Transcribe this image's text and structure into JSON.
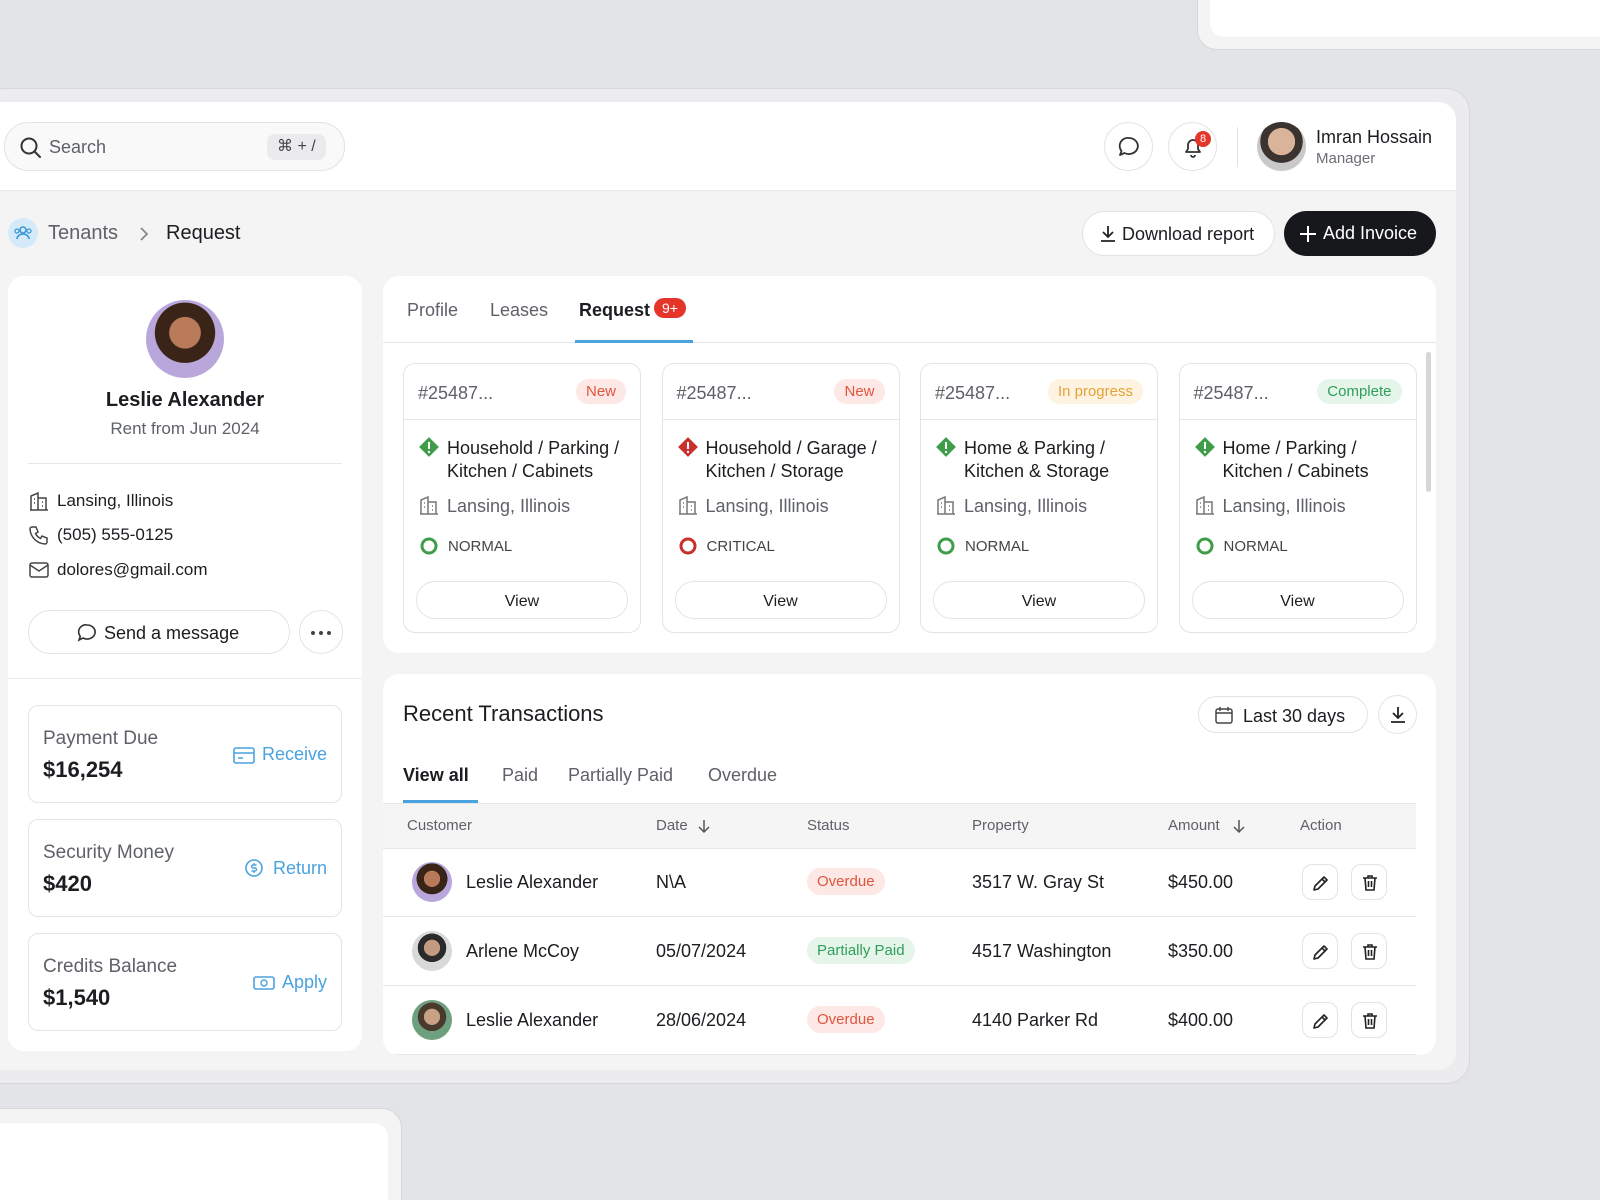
{
  "header": {
    "search_placeholder": "Search",
    "shortcut": "⌘ + /",
    "notification_count": "8",
    "user": {
      "name": "Imran Hossain",
      "role": "Manager"
    }
  },
  "breadcrumb": [
    "Tenants",
    "Request"
  ],
  "actions": {
    "download": "Download report",
    "add": "Add Invoice"
  },
  "tenant": {
    "name": "Leslie Alexander",
    "since": "Rent from Jun 2024",
    "location": "Lansing, Illinois",
    "phone": "(505) 555-0125",
    "email": "dolores@gmail.com",
    "message": "Send a message"
  },
  "balances": [
    {
      "label": "Payment Due",
      "amount": "$16,254",
      "action": "Receive"
    },
    {
      "label": "Security Money",
      "amount": "$420",
      "action": "Return"
    },
    {
      "label": "Credits Balance",
      "amount": "$1,540",
      "action": "Apply"
    }
  ],
  "tabs": {
    "items": [
      "Profile",
      "Leases",
      "Request"
    ],
    "badge": "9+"
  },
  "requests": [
    {
      "id": "#25487...",
      "status": "New",
      "status_color": "#e0553d",
      "status_bg": "#fde8e6",
      "category": "Household / Parking / Kitchen / Cabinets",
      "location": "Lansing, Illinois",
      "priority": "NORMAL",
      "priority_color": "#3f9d4a",
      "action": "View"
    },
    {
      "id": "#25487...",
      "status": "New",
      "status_color": "#e0553d",
      "status_bg": "#fde8e6",
      "category": "Household / Garage / Kitchen / Storage",
      "location": "Lansing, Illinois",
      "priority": "CRITICAL",
      "priority_color": "#c9302c",
      "action": "View"
    },
    {
      "id": "#25487...",
      "status": "In progress",
      "status_color": "#e5a23a",
      "status_bg": "#fdf3e0",
      "category": "Home & Parking / Kitchen & Storage",
      "location": "Lansing, Illinois",
      "priority": "NORMAL",
      "priority_color": "#3f9d4a",
      "action": "View"
    },
    {
      "id": "#25487...",
      "status": "Complete",
      "status_color": "#2f9e5a",
      "status_bg": "#e5f5ea",
      "category": "Home / Parking / Kitchen / Cabinets",
      "location": "Lansing, Illinois",
      "priority": "NORMAL",
      "priority_color": "#3f9d4a",
      "action": "View"
    }
  ],
  "transactions": {
    "title": "Recent Transactions",
    "range": "Last 30 days",
    "filters": [
      "View all",
      "Paid",
      "Partially Paid",
      "Overdue"
    ],
    "columns": [
      "Customer",
      "Date",
      "Status",
      "Property",
      "Amount",
      "Action"
    ],
    "rows": [
      {
        "customer": "Leslie Alexander",
        "date": "N\\A",
        "status": "Overdue",
        "status_color": "#e0553d",
        "status_bg": "#fde8e6",
        "property": "3517 W. Gray St",
        "amount": "$450.00"
      },
      {
        "customer": "Arlene McCoy",
        "date": "05/07/2024",
        "status": "Partially Paid",
        "status_color": "#2f9e5a",
        "status_bg": "#e5f5ea",
        "property": "4517 Washington",
        "amount": "$350.00"
      },
      {
        "customer": "Leslie Alexander",
        "date": "28/06/2024",
        "status": "Overdue",
        "status_color": "#e0553d",
        "status_bg": "#fde8e6",
        "property": "4140 Parker Rd",
        "amount": "$400.00"
      }
    ]
  }
}
